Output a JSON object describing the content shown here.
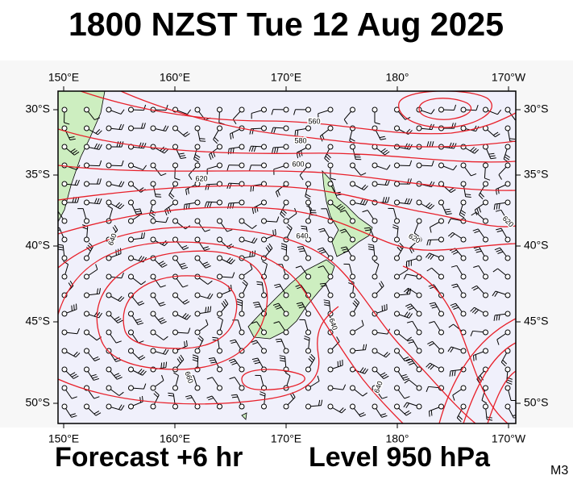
{
  "header": {
    "title": "1800 NZST Tue 12 Aug 2025"
  },
  "map": {
    "top_ticks": [
      "150°E",
      "160°E",
      "170°E",
      "180°",
      "170°W"
    ],
    "bottom_ticks": [
      "150°E",
      "160°E",
      "170°E",
      "180°",
      "170°W"
    ],
    "left_ticks": [
      "30°S",
      "35°S",
      "40°S",
      "45°S",
      "50°S"
    ],
    "right_ticks": [
      "30°S",
      "35°S",
      "40°S",
      "45°S",
      "50°S"
    ],
    "contour_labels": [
      "560",
      "580",
      "600",
      "620",
      "640",
      "640",
      "620",
      "640",
      "660",
      "640",
      "620"
    ]
  },
  "footer": {
    "forecast": "Forecast +6 hr",
    "level": "Level 950 hPa",
    "code": "M3"
  }
}
